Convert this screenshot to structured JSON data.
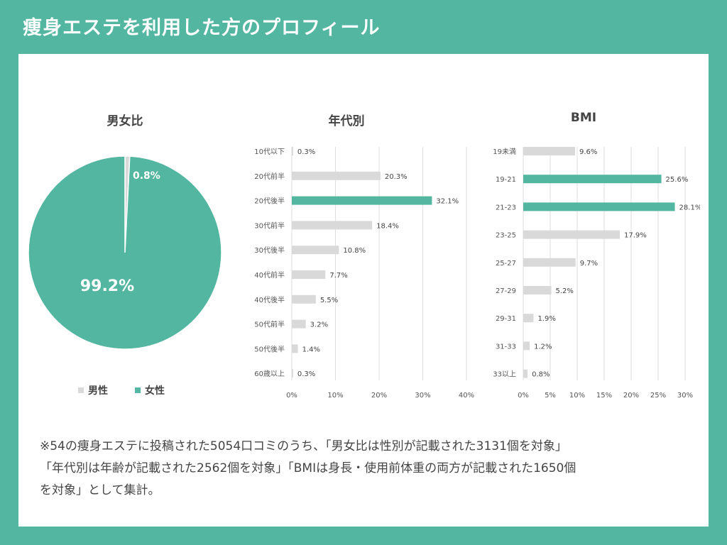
{
  "title": "痩身エステを利用した方のプロフィール",
  "colors": {
    "accent": "#52b6a0",
    "gray": "#d9d9d9",
    "text": "#444444"
  },
  "chart_data": [
    {
      "type": "pie",
      "title": "男女比",
      "series": [
        {
          "name": "男性",
          "value": 0.8,
          "label": "0.8%",
          "color": "#d9d9d9"
        },
        {
          "name": "女性",
          "value": 99.2,
          "label": "99.2%",
          "color": "#52b6a0"
        }
      ],
      "legend": [
        "男性",
        "女性"
      ]
    },
    {
      "type": "bar",
      "orientation": "horizontal",
      "title": "年代別",
      "categories": [
        "10代以下",
        "20代前半",
        "20代後半",
        "30代前半",
        "30代後半",
        "40代前半",
        "40代後半",
        "50代前半",
        "50代後半",
        "60歳以上"
      ],
      "values": [
        0.3,
        20.3,
        32.1,
        18.4,
        10.8,
        7.7,
        5.5,
        3.2,
        1.4,
        0.3
      ],
      "labels": [
        "0.3%",
        "20.3%",
        "32.1%",
        "18.4%",
        "10.8%",
        "7.7%",
        "5.5%",
        "3.2%",
        "1.4%",
        "0.3%"
      ],
      "highlight": [
        2
      ],
      "xlim": [
        0,
        40
      ],
      "ticks": [
        "0%",
        "10%",
        "20%",
        "30%",
        "40%"
      ]
    },
    {
      "type": "bar",
      "orientation": "horizontal",
      "title": "BMI",
      "categories": [
        "19未満",
        "19-21",
        "21-23",
        "23-25",
        "25-27",
        "27-29",
        "29-31",
        "31-33",
        "33以上"
      ],
      "values": [
        9.6,
        25.6,
        28.1,
        17.9,
        9.7,
        5.2,
        1.9,
        1.2,
        0.8
      ],
      "labels": [
        "9.6%",
        "25.6%",
        "28.1%",
        "17.9%",
        "9.7%",
        "5.2%",
        "1.9%",
        "1.2%",
        "0.8%"
      ],
      "highlight": [
        1,
        2
      ],
      "xlim": [
        0,
        30
      ],
      "ticks": [
        "0%",
        "5%",
        "10%",
        "15%",
        "20%",
        "25%",
        "30%"
      ]
    }
  ],
  "note": [
    "※54の痩身エステに投稿された5054口コミのうち、「男女比は性別が記載された3131個を対象」",
    "「年代別は年齢が記載された2562個を対象」「BMIは身長・使用前体重の両方が記載された1650個",
    "を対象」として集計。"
  ]
}
